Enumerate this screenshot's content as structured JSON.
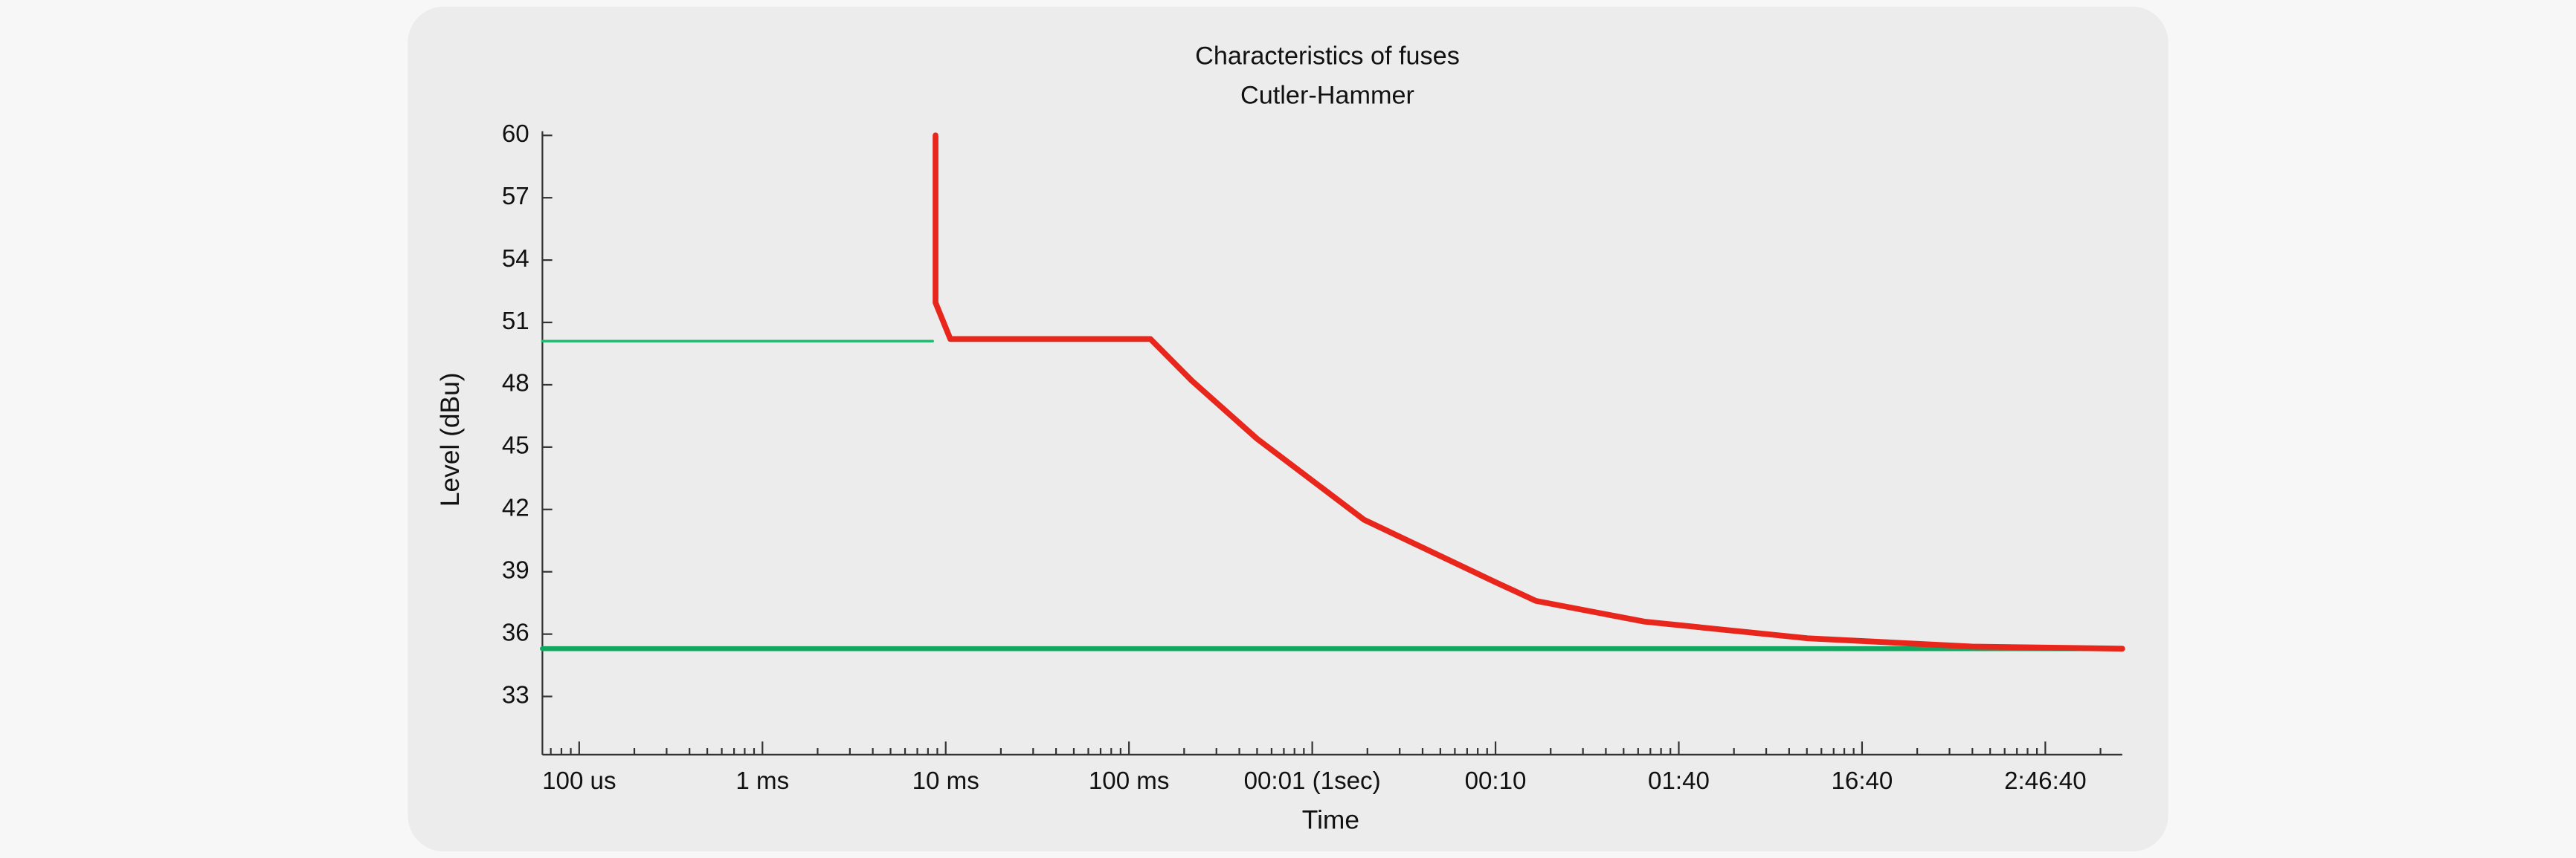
{
  "chart_data": {
    "type": "line",
    "title": "Characteristics of fuses",
    "subtitle": "Cutler-Hammer",
    "xlabel": "Time",
    "ylabel": "Level (dBu)",
    "xscale": "log",
    "xlim": [
      6.3e-05,
      26300
    ],
    "ylim": [
      30.2,
      60.2
    ],
    "xticks": [
      {
        "value": 0.0001,
        "label": "100 us"
      },
      {
        "value": 0.001,
        "label": "1 ms"
      },
      {
        "value": 0.01,
        "label": "10 ms"
      },
      {
        "value": 0.1,
        "label": "100 ms"
      },
      {
        "value": 1,
        "label": "00:01 (1sec)"
      },
      {
        "value": 10,
        "label": "00:10"
      },
      {
        "value": 100,
        "label": "01:40"
      },
      {
        "value": 1000,
        "label": "16:40"
      },
      {
        "value": 10000,
        "label": "2:46:40"
      }
    ],
    "yticks": [
      33,
      36,
      39,
      42,
      45,
      48,
      51,
      54,
      57,
      60
    ],
    "minor_xticks": true,
    "series": [
      {
        "color": "#1fb86e",
        "linewidth": 1.5,
        "x": [
          6.3e-05,
          0.0085
        ],
        "values": [
          50.1,
          50.1
        ]
      },
      {
        "color": "#10a860",
        "linewidth": 3,
        "x": [
          6.3e-05,
          26300
        ],
        "values": [
          35.3,
          35.3
        ]
      },
      {
        "color": "#e8261c",
        "linewidth": 3.5,
        "x": [
          0.0088,
          0.0088,
          0.0106,
          0.131,
          0.22,
          0.5,
          1.92,
          10,
          16.6,
          65,
          505,
          3980,
          26300
        ],
        "values": [
          60,
          51.95,
          50.2,
          50.2,
          48.2,
          45.4,
          41.5,
          38.5,
          37.6,
          36.6,
          35.8,
          35.4,
          35.3
        ]
      }
    ]
  }
}
